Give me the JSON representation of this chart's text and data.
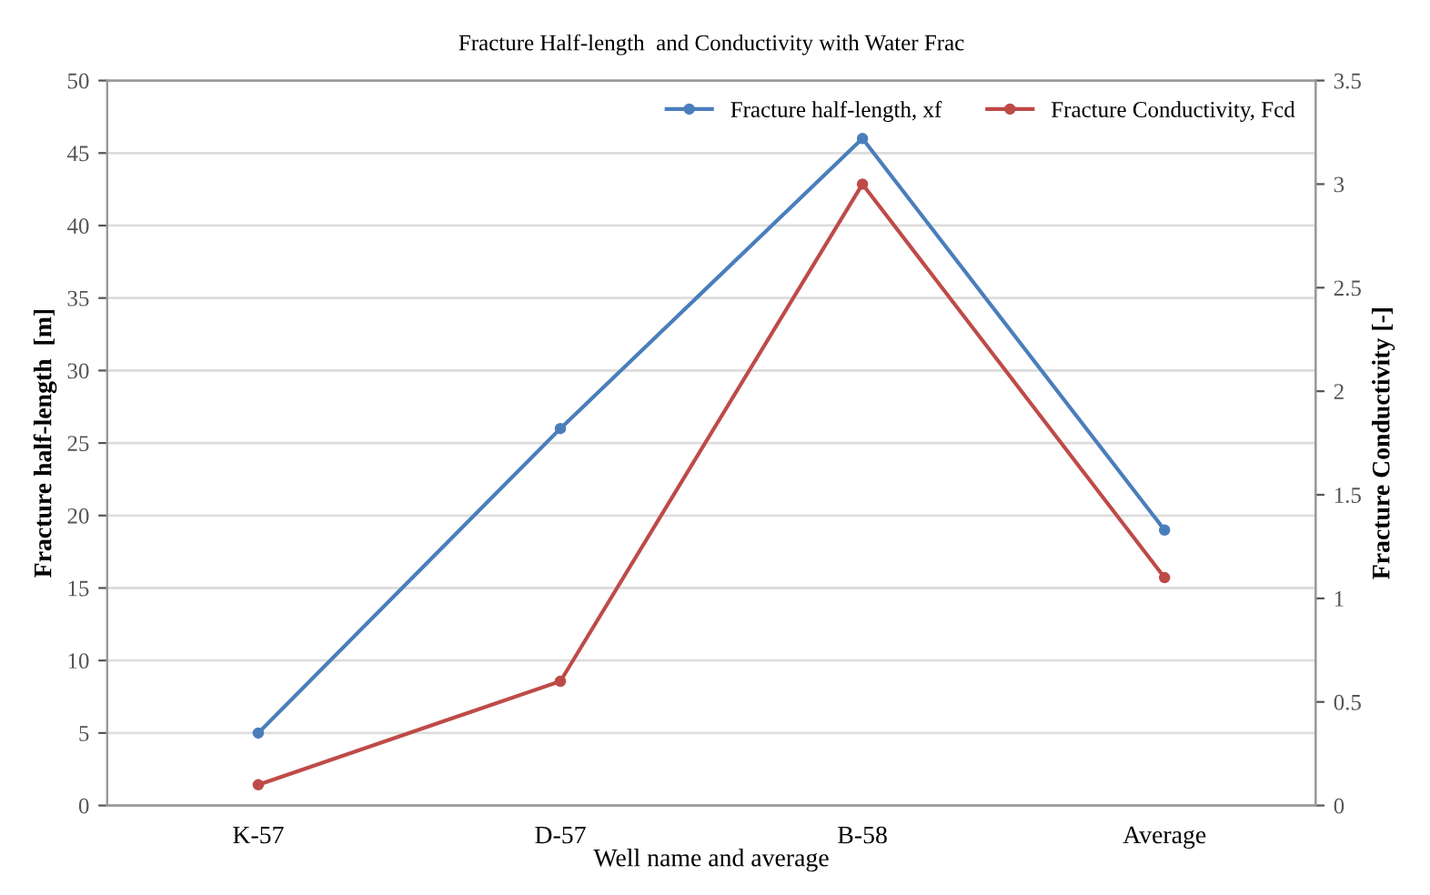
{
  "chart_data": {
    "type": "line",
    "title": "Fracture Half-length  and Conductivity with Water Frac",
    "xlabel": "Well name and average",
    "ylabel": "Fracture half-length  [m]",
    "y2label": "Fracture Conductivity [-]",
    "categories": [
      "K-57",
      "D-57",
      "B-58",
      "Average"
    ],
    "series": [
      {
        "name": "Fracture half-length, xf",
        "color": "#4a7ebb",
        "values": [
          5,
          26,
          46,
          19
        ]
      },
      {
        "name": "Fracture Conductivity, Fcd",
        "color": "#be4b48",
        "values": [
          0.1,
          0.6,
          3.0,
          1.1
        ],
        "axis": "y2"
      }
    ],
    "ylim": [
      0,
      50
    ],
    "yticks": [
      0,
      5,
      10,
      15,
      20,
      25,
      30,
      35,
      40,
      45,
      50
    ],
    "y2lim": [
      0,
      3.5
    ],
    "y2ticks": [
      0,
      0.5,
      1,
      1.5,
      2,
      2.5,
      3,
      3.5
    ],
    "grid": "y",
    "legend": "top right",
    "marker": "circle",
    "line_style": "solid"
  }
}
